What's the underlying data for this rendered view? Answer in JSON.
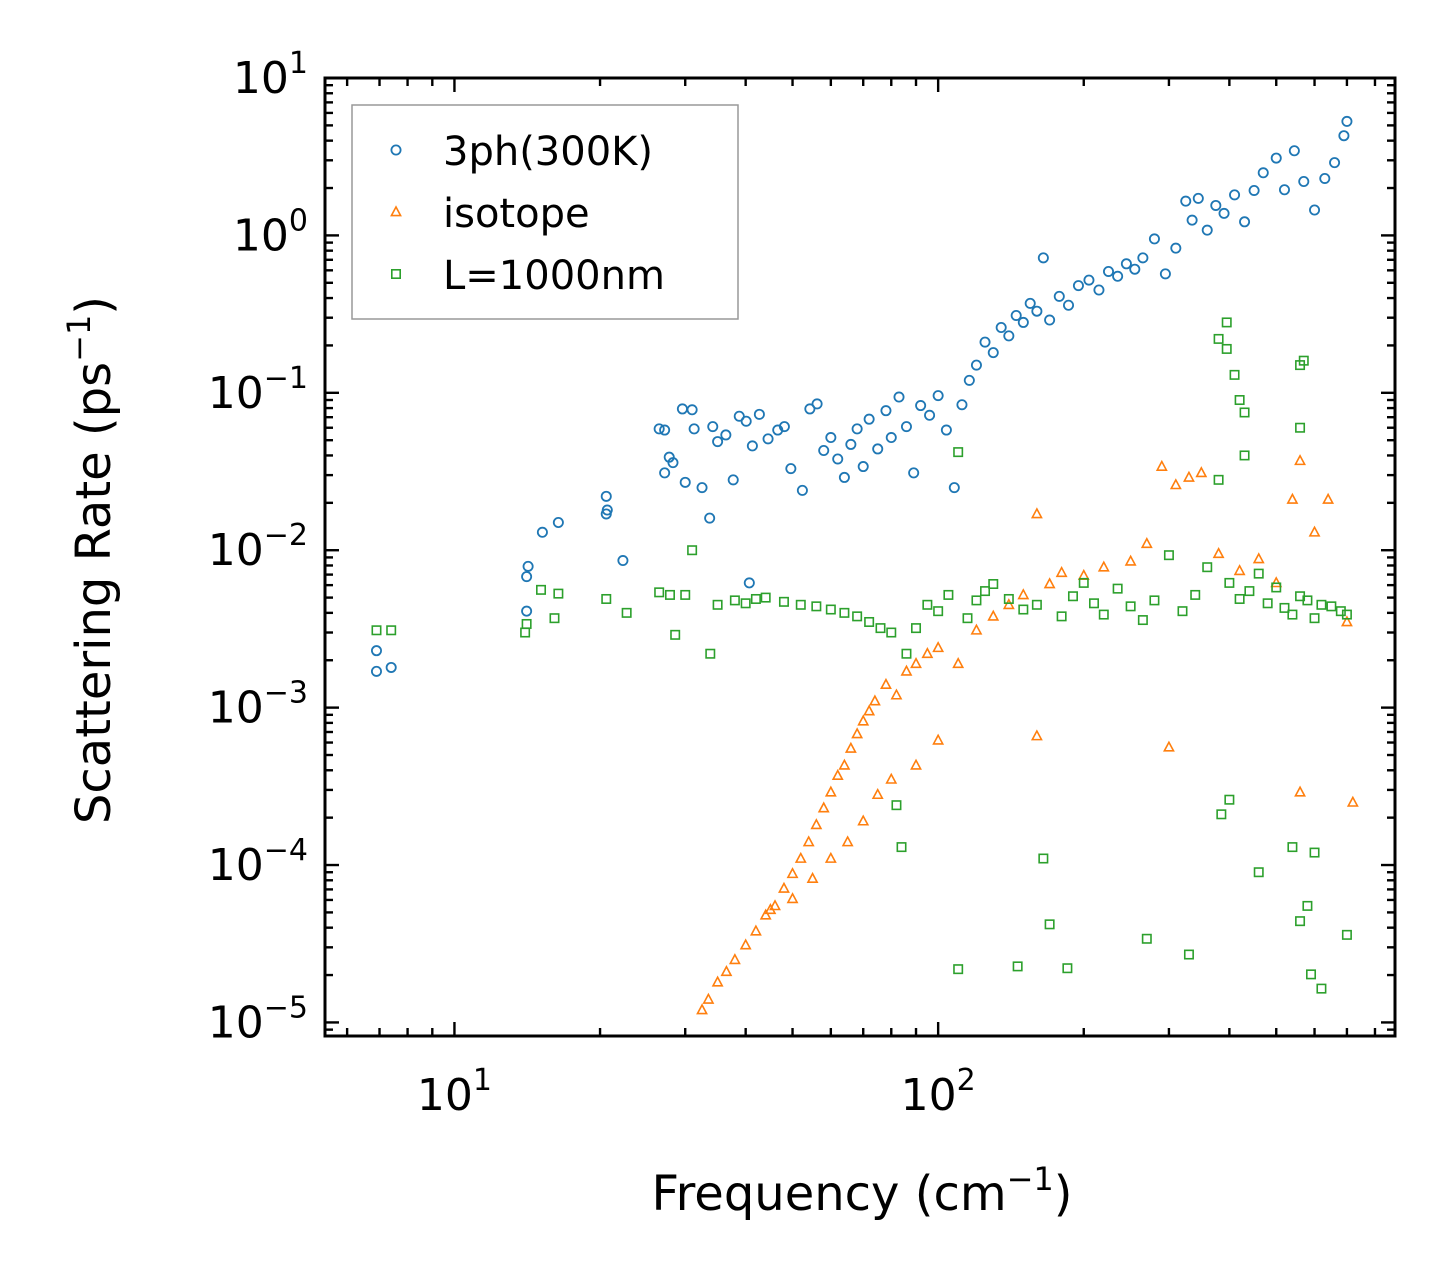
{
  "chart_data": {
    "type": "scatter",
    "xscale": "log",
    "yscale": "log",
    "xlabel": {
      "base": "Frequency (cm",
      "sup": "−1",
      "end": ")"
    },
    "ylabel": {
      "base": "Scattering Rate (ps",
      "sup": "−1",
      "end": ")"
    },
    "xlim": [
      5.4,
      880
    ],
    "ylim": [
      8.2e-06,
      10
    ],
    "xticks": [
      {
        "value": 10,
        "base": "10",
        "sup": "1"
      },
      {
        "value": 100,
        "base": "10",
        "sup": "2"
      }
    ],
    "yticks": [
      {
        "value": 10,
        "base": "10",
        "sup": "1"
      },
      {
        "value": 1,
        "base": "10",
        "sup": "0"
      },
      {
        "value": 0.1,
        "base": "10",
        "sup": "−1"
      },
      {
        "value": 0.01,
        "base": "10",
        "sup": "−2"
      },
      {
        "value": 0.001,
        "base": "10",
        "sup": "−3"
      },
      {
        "value": 0.0001,
        "base": "10",
        "sup": "−4"
      },
      {
        "value": 1e-05,
        "base": "10",
        "sup": "−5"
      }
    ],
    "legend_position": "top-left",
    "series": [
      {
        "name": "3ph(300K)",
        "marker": "circle",
        "color": "#1f77b4",
        "points": [
          [
            6.9,
            0.0017
          ],
          [
            6.9,
            0.0023
          ],
          [
            7.4,
            0.0018
          ],
          [
            14.1,
            0.0041
          ],
          [
            14.1,
            0.0068
          ],
          [
            14.2,
            0.0079
          ],
          [
            15.2,
            0.013
          ],
          [
            16.4,
            0.015
          ],
          [
            20.6,
            0.017
          ],
          [
            20.6,
            0.022
          ],
          [
            20.7,
            0.018
          ],
          [
            22.3,
            0.0086
          ],
          [
            26.5,
            0.059
          ],
          [
            27.2,
            0.058
          ],
          [
            27.2,
            0.031
          ],
          [
            27.8,
            0.039
          ],
          [
            28.3,
            0.036
          ],
          [
            29.6,
            0.079
          ],
          [
            31.0,
            0.078
          ],
          [
            31.3,
            0.059
          ],
          [
            30.0,
            0.027
          ],
          [
            32.5,
            0.025
          ],
          [
            33.7,
            0.016
          ],
          [
            34.2,
            0.061
          ],
          [
            35.0,
            0.049
          ],
          [
            36.4,
            0.054
          ],
          [
            37.7,
            0.028
          ],
          [
            38.8,
            0.071
          ],
          [
            40.1,
            0.066
          ],
          [
            41.3,
            0.046
          ],
          [
            42.7,
            0.073
          ],
          [
            44.5,
            0.051
          ],
          [
            46.6,
            0.058
          ],
          [
            48.1,
            0.061
          ],
          [
            49.6,
            0.033
          ],
          [
            52.4,
            0.024
          ],
          [
            54.3,
            0.079
          ],
          [
            56.2,
            0.085
          ],
          [
            40.7,
            0.0062
          ],
          [
            58.0,
            0.043
          ],
          [
            60.0,
            0.052
          ],
          [
            62.0,
            0.038
          ],
          [
            64.0,
            0.029
          ],
          [
            66.0,
            0.047
          ],
          [
            68.0,
            0.059
          ],
          [
            70.0,
            0.034
          ],
          [
            72.0,
            0.068
          ],
          [
            75.0,
            0.044
          ],
          [
            78.0,
            0.077
          ],
          [
            80.0,
            0.052
          ],
          [
            83.0,
            0.094
          ],
          [
            86.0,
            0.061
          ],
          [
            89.0,
            0.031
          ],
          [
            92.0,
            0.083
          ],
          [
            96.0,
            0.072
          ],
          [
            100.0,
            0.096
          ],
          [
            104.0,
            0.058
          ],
          [
            108.0,
            0.025
          ],
          [
            112.0,
            0.084
          ],
          [
            116.0,
            0.12
          ],
          [
            120.0,
            0.15
          ],
          [
            125.0,
            0.21
          ],
          [
            130.0,
            0.18
          ],
          [
            135.0,
            0.26
          ],
          [
            140.0,
            0.23
          ],
          [
            145.0,
            0.31
          ],
          [
            150.0,
            0.28
          ],
          [
            155.0,
            0.37
          ],
          [
            160.0,
            0.33
          ],
          [
            165.0,
            0.72
          ],
          [
            170.0,
            0.29
          ],
          [
            178.0,
            0.41
          ],
          [
            186.0,
            0.36
          ],
          [
            195.0,
            0.48
          ],
          [
            205.0,
            0.52
          ],
          [
            215.0,
            0.45
          ],
          [
            225.0,
            0.59
          ],
          [
            235.0,
            0.55
          ],
          [
            245.0,
            0.66
          ],
          [
            255.0,
            0.61
          ],
          [
            265.0,
            0.72
          ],
          [
            280.0,
            0.95
          ],
          [
            295.0,
            0.57
          ],
          [
            310.0,
            0.83
          ],
          [
            325.0,
            1.65
          ],
          [
            335.0,
            1.25
          ],
          [
            345.0,
            1.72
          ],
          [
            360.0,
            1.08
          ],
          [
            375.0,
            1.55
          ],
          [
            390.0,
            1.38
          ],
          [
            410.0,
            1.81
          ],
          [
            430.0,
            1.22
          ],
          [
            450.0,
            1.93
          ],
          [
            470.0,
            2.5
          ],
          [
            500.0,
            3.1
          ],
          [
            520.0,
            1.95
          ],
          [
            545.0,
            3.45
          ],
          [
            570.0,
            2.2
          ],
          [
            600.0,
            1.45
          ],
          [
            630.0,
            2.3
          ],
          [
            660.0,
            2.9
          ],
          [
            690.0,
            4.3
          ],
          [
            700.0,
            5.3
          ]
        ]
      },
      {
        "name": "isotope",
        "marker": "triangle",
        "color": "#ff7f0e",
        "points": [
          [
            32.5,
            1.2e-05
          ],
          [
            33.5,
            1.4e-05
          ],
          [
            35.0,
            1.8e-05
          ],
          [
            36.5,
            2.1e-05
          ],
          [
            38.0,
            2.5e-05
          ],
          [
            40.0,
            3.1e-05
          ],
          [
            42.0,
            3.8e-05
          ],
          [
            44.0,
            4.8e-05
          ],
          [
            46.0,
            5.5e-05
          ],
          [
            48.0,
            7.1e-05
          ],
          [
            50.0,
            8.8e-05
          ],
          [
            52.0,
            0.00011
          ],
          [
            54.0,
            0.00014
          ],
          [
            56.0,
            0.00018
          ],
          [
            58.0,
            0.00023
          ],
          [
            60.0,
            0.00029
          ],
          [
            62.0,
            0.00037
          ],
          [
            64.0,
            0.00043
          ],
          [
            66.0,
            0.00055
          ],
          [
            68.0,
            0.00068
          ],
          [
            70.0,
            0.00082
          ],
          [
            72.0,
            0.00095
          ],
          [
            74.0,
            0.0011
          ],
          [
            78.0,
            0.0014
          ],
          [
            82.0,
            0.0012
          ],
          [
            86.0,
            0.0017
          ],
          [
            90.0,
            0.0019
          ],
          [
            95.0,
            0.0022
          ],
          [
            100.0,
            0.0024
          ],
          [
            110.0,
            0.0019
          ],
          [
            120.0,
            0.0031
          ],
          [
            130.0,
            0.0038
          ],
          [
            140.0,
            0.0045
          ],
          [
            150.0,
            0.0052
          ],
          [
            160.0,
            0.017
          ],
          [
            170.0,
            0.0061
          ],
          [
            180.0,
            0.0072
          ],
          [
            200.0,
            0.0069
          ],
          [
            220.0,
            0.0078
          ],
          [
            250.0,
            0.0085
          ],
          [
            270.0,
            0.011
          ],
          [
            290.0,
            0.034
          ],
          [
            310.0,
            0.026
          ],
          [
            330.0,
            0.029
          ],
          [
            350.0,
            0.031
          ],
          [
            380.0,
            0.0095
          ],
          [
            420.0,
            0.0074
          ],
          [
            460.0,
            0.0088
          ],
          [
            500.0,
            0.0062
          ],
          [
            540.0,
            0.021
          ],
          [
            560.0,
            0.037
          ],
          [
            600.0,
            0.013
          ],
          [
            640.0,
            0.021
          ],
          [
            700.0,
            0.0035
          ],
          [
            720.0,
            0.00025
          ],
          [
            45.0,
            5.2e-05
          ],
          [
            50.0,
            6.1e-05
          ],
          [
            55.0,
            8.2e-05
          ],
          [
            60.0,
            0.00011
          ],
          [
            65.0,
            0.00014
          ],
          [
            70.0,
            0.00019
          ],
          [
            75.0,
            0.00028
          ],
          [
            80.0,
            0.00035
          ],
          [
            90.0,
            0.00043
          ],
          [
            100.0,
            0.00062
          ],
          [
            160.0,
            0.00066
          ],
          [
            300.0,
            0.00056
          ],
          [
            560.0,
            0.00029
          ]
        ]
      },
      {
        "name": "L=1000nm",
        "marker": "square",
        "color": "#2ca02c",
        "points": [
          [
            6.9,
            0.0031
          ],
          [
            7.4,
            0.0031
          ],
          [
            14.0,
            0.003
          ],
          [
            14.1,
            0.0034
          ],
          [
            15.1,
            0.0056
          ],
          [
            16.1,
            0.0037
          ],
          [
            16.4,
            0.0053
          ],
          [
            20.6,
            0.0049
          ],
          [
            22.7,
            0.004
          ],
          [
            26.5,
            0.0054
          ],
          [
            27.9,
            0.0052
          ],
          [
            28.6,
            0.0029
          ],
          [
            30.0,
            0.0052
          ],
          [
            31.0,
            0.01
          ],
          [
            33.8,
            0.0022
          ],
          [
            35.0,
            0.0045
          ],
          [
            38.0,
            0.0048
          ],
          [
            40.0,
            0.0046
          ],
          [
            42.0,
            0.0049
          ],
          [
            44.0,
            0.005
          ],
          [
            48.0,
            0.0047
          ],
          [
            52.0,
            0.0045
          ],
          [
            56.0,
            0.0044
          ],
          [
            60.0,
            0.0042
          ],
          [
            64.0,
            0.004
          ],
          [
            68.0,
            0.0038
          ],
          [
            72.0,
            0.0035
          ],
          [
            76.0,
            0.0032
          ],
          [
            80.0,
            0.003
          ],
          [
            82.0,
            0.00024
          ],
          [
            84.0,
            0.00013
          ],
          [
            86.0,
            0.0022
          ],
          [
            90.0,
            0.0032
          ],
          [
            95.0,
            0.0045
          ],
          [
            100.0,
            0.0041
          ],
          [
            105.0,
            0.0052
          ],
          [
            110.0,
            0.042
          ],
          [
            115.0,
            0.0037
          ],
          [
            120.0,
            0.0048
          ],
          [
            125.0,
            0.0055
          ],
          [
            130.0,
            0.0061
          ],
          [
            140.0,
            0.0049
          ],
          [
            150.0,
            0.0042
          ],
          [
            160.0,
            0.0045
          ],
          [
            165.0,
            0.00011
          ],
          [
            170.0,
            4.2e-05
          ],
          [
            180.0,
            0.0038
          ],
          [
            190.0,
            0.0051
          ],
          [
            200.0,
            0.0062
          ],
          [
            210.0,
            0.0046
          ],
          [
            220.0,
            0.0039
          ],
          [
            235.0,
            0.0057
          ],
          [
            250.0,
            0.0044
          ],
          [
            265.0,
            0.0036
          ],
          [
            280.0,
            0.0048
          ],
          [
            300.0,
            0.0093
          ],
          [
            320.0,
            0.0041
          ],
          [
            340.0,
            0.0052
          ],
          [
            360.0,
            0.0078
          ],
          [
            380.0,
            0.028
          ],
          [
            400.0,
            0.0062
          ],
          [
            420.0,
            0.0049
          ],
          [
            440.0,
            0.0055
          ],
          [
            460.0,
            0.0071
          ],
          [
            480.0,
            0.0046
          ],
          [
            500.0,
            0.0058
          ],
          [
            520.0,
            0.0043
          ],
          [
            540.0,
            0.0039
          ],
          [
            560.0,
            0.0051
          ],
          [
            580.0,
            0.0048
          ],
          [
            600.0,
            0.0037
          ],
          [
            620.0,
            0.0045
          ],
          [
            650.0,
            0.0044
          ],
          [
            680.0,
            0.0041
          ],
          [
            700.0,
            0.0039
          ],
          [
            110.0,
            2.18e-05
          ],
          [
            146.0,
            2.27e-05
          ],
          [
            185.0,
            2.21e-05
          ],
          [
            270.0,
            3.4e-05
          ],
          [
            330.0,
            2.7e-05
          ],
          [
            590.0,
            2.02e-05
          ],
          [
            620.0,
            1.64e-05
          ],
          [
            700.0,
            3.6e-05
          ],
          [
            385.0,
            0.00021
          ],
          [
            400.0,
            0.00026
          ],
          [
            460.0,
            9e-05
          ],
          [
            540.0,
            0.00013
          ],
          [
            600.0,
            0.00012
          ],
          [
            580.0,
            5.5e-05
          ],
          [
            560.0,
            4.4e-05
          ],
          [
            560.0,
            0.15
          ],
          [
            570.0,
            0.16
          ],
          [
            395.0,
            0.28
          ],
          [
            380.0,
            0.22
          ],
          [
            395.0,
            0.19
          ],
          [
            410.0,
            0.13
          ],
          [
            420.0,
            0.09
          ],
          [
            430.0,
            0.075
          ],
          [
            560.0,
            0.06
          ],
          [
            430.0,
            0.04
          ]
        ]
      }
    ]
  }
}
